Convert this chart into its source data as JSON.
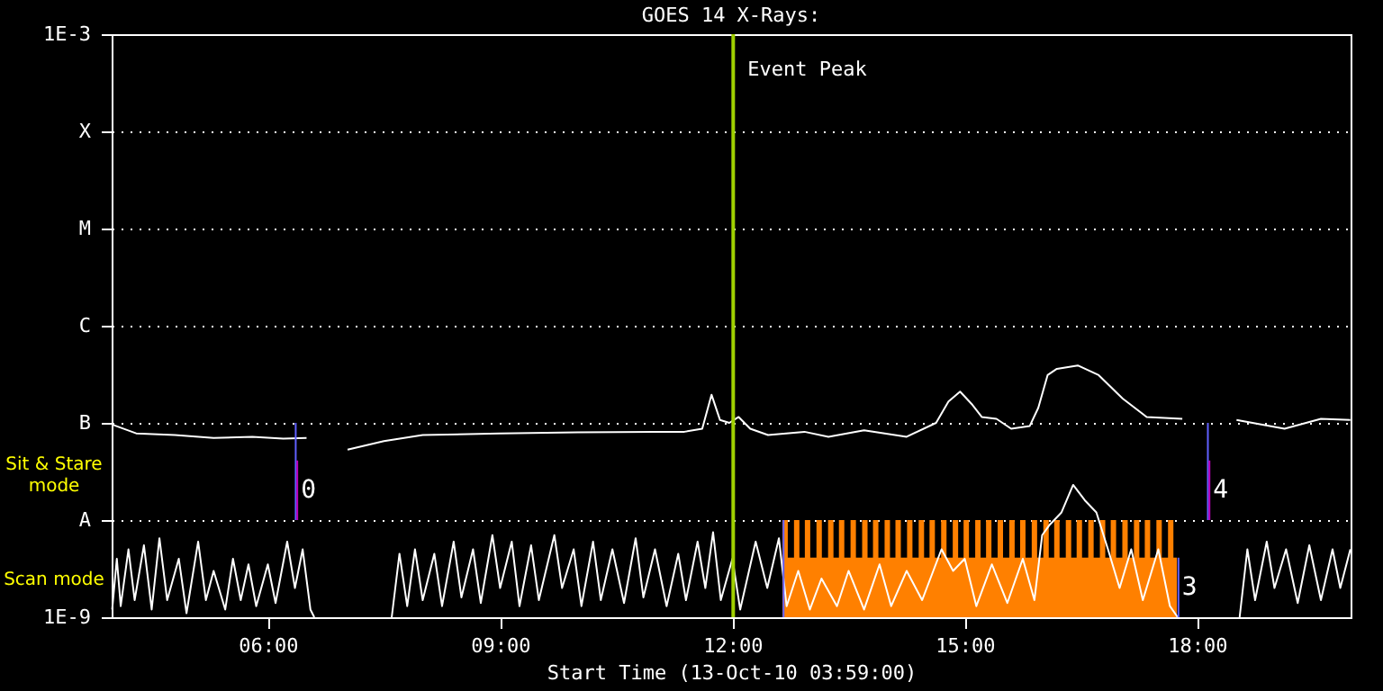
{
  "chart_data": {
    "type": "line",
    "title": "GOES 14 X-Rays:",
    "xlabel": "Start Time (13-Oct-10 03:59:00)",
    "xlim": [
      3.983,
      19.983
    ],
    "xticks": [
      {
        "value": 6,
        "label": "06:00"
      },
      {
        "value": 9,
        "label": "09:00"
      },
      {
        "value": 12,
        "label": "12:00"
      },
      {
        "value": 15,
        "label": "15:00"
      },
      {
        "value": 18,
        "label": "18:00"
      }
    ],
    "ylim": [
      1e-09,
      0.001
    ],
    "log": "y",
    "yticks": [
      {
        "value": 1e-09,
        "label": "1E-9"
      },
      {
        "value": 1e-08,
        "label": "A"
      },
      {
        "value": 1e-07,
        "label": "B"
      },
      {
        "value": 1e-06,
        "label": "C"
      },
      {
        "value": 1e-05,
        "label": "M"
      },
      {
        "value": 0.0001,
        "label": "X"
      },
      {
        "value": 0.001,
        "label": "1E-3"
      }
    ],
    "grid": "y",
    "series": [
      {
        "type": "area",
        "color": "#ff8000",
        "x": [
          12.66,
          17.74
        ],
        "values": [
          4.1e-09,
          4.1e-09
        ]
      },
      {
        "type": "bar",
        "color": "#ff8000",
        "x": [
          12.68,
          12.83,
          12.97,
          13.12,
          13.27,
          13.41,
          13.56,
          13.71,
          13.85,
          14.0,
          14.14,
          14.29,
          14.44,
          14.58,
          14.73,
          14.88,
          15.02,
          15.17,
          15.31,
          15.46,
          15.61,
          15.75,
          15.9,
          16.05,
          16.19,
          16.34,
          16.48,
          16.63,
          16.78,
          16.92,
          17.07,
          17.22,
          17.36,
          17.51,
          17.66
        ],
        "values": [
          1e-08,
          1e-08,
          1e-08,
          1e-08,
          1e-08,
          1e-08,
          1e-08,
          1e-08,
          1e-08,
          1e-08,
          1e-08,
          1e-08,
          1e-08,
          1e-08,
          1e-08,
          1e-08,
          1e-08,
          1e-08,
          1e-08,
          1e-08,
          1e-08,
          1e-08,
          1e-08,
          1e-08,
          1e-08,
          1e-08,
          1e-08,
          1e-08,
          1e-08,
          1e-08,
          1e-08,
          1e-08,
          1e-08,
          1e-08,
          1e-08
        ]
      },
      {
        "color": "#ffffff",
        "x": [
          3.99,
          4.05,
          4.1,
          4.2,
          4.28,
          4.4,
          4.5,
          4.6,
          4.7,
          4.85,
          4.95,
          5.1,
          5.2,
          5.3,
          5.45,
          5.55,
          5.65,
          5.75,
          5.85,
          6.0,
          6.1,
          6.25,
          6.35,
          6.45,
          6.55,
          6.6,
          7.0,
          7.6,
          7.7,
          7.8,
          7.9,
          8.0,
          8.15,
          8.25,
          8.4,
          8.5,
          8.65,
          8.75,
          8.9,
          9.0,
          9.15,
          9.25,
          9.4,
          9.5,
          9.7,
          9.8,
          9.95,
          10.05,
          10.2,
          10.3,
          10.45,
          10.6,
          10.75,
          10.85,
          11.0,
          11.15,
          11.3,
          11.4,
          11.55,
          11.65,
          11.75,
          11.85,
          12.0,
          12.1,
          12.3,
          12.45,
          12.6,
          12.7,
          12.85,
          13.0,
          13.15,
          13.35,
          13.5,
          13.7,
          13.9,
          14.05,
          14.25,
          14.45,
          14.7,
          14.85,
          15.0,
          15.15,
          15.35,
          15.55,
          15.75,
          15.9,
          16.0,
          16.1,
          16.25,
          16.4,
          16.55,
          16.7,
          16.85,
          17.0,
          17.15,
          17.3,
          17.5,
          17.65,
          17.75,
          18.1,
          18.55,
          18.65,
          18.75,
          18.9,
          19.0,
          19.15,
          19.3,
          19.45,
          19.6,
          19.75,
          19.85,
          19.98
        ],
        "values": [
          1.2e-09,
          4e-09,
          1.3e-09,
          5e-09,
          1.5e-09,
          5.5e-09,
          1.2e-09,
          6.5e-09,
          1.5e-09,
          4e-09,
          1.1e-09,
          6e-09,
          1.5e-09,
          3e-09,
          1.2e-09,
          4e-09,
          1.5e-09,
          3.5e-09,
          1.3e-09,
          3.5e-09,
          1.4e-09,
          6e-09,
          2e-09,
          5e-09,
          1.2e-09,
          1e-09,
          null,
          1e-09,
          4.5e-09,
          1.3e-09,
          5e-09,
          1.5e-09,
          4.5e-09,
          1.3e-09,
          6e-09,
          1.6e-09,
          5e-09,
          1.4e-09,
          7e-09,
          2e-09,
          6e-09,
          1.3e-09,
          5.5e-09,
          1.5e-09,
          7e-09,
          2e-09,
          5e-09,
          1.3e-09,
          6e-09,
          1.5e-09,
          5e-09,
          1.4e-09,
          6.5e-09,
          1.6e-09,
          5e-09,
          1.3e-09,
          4.5e-09,
          1.5e-09,
          6e-09,
          2e-09,
          7.5e-09,
          1.5e-09,
          4e-09,
          1.2e-09,
          6e-09,
          2e-09,
          6.5e-09,
          1.3e-09,
          3e-09,
          1.2e-09,
          2.5e-09,
          1.3e-09,
          3e-09,
          1.2e-09,
          3.5e-09,
          1.3e-09,
          3e-09,
          1.5e-09,
          5e-09,
          3e-09,
          4e-09,
          1.3e-09,
          3.5e-09,
          1.4e-09,
          4e-09,
          1.5e-09,
          7e-09,
          9e-09,
          1.2e-08,
          2.3e-08,
          1.6e-08,
          1.2e-08,
          5e-09,
          2e-09,
          5e-09,
          1.5e-09,
          5e-09,
          1.3e-09,
          1e-09,
          null,
          1e-09,
          5e-09,
          1.5e-09,
          6e-09,
          2e-09,
          5e-09,
          1.4e-09,
          5.5e-09,
          1.5e-09,
          5e-09,
          2e-09,
          5e-09
        ]
      },
      {
        "color": "#ffffff",
        "x": [
          3.99,
          4.3,
          4.8,
          5.3,
          5.8,
          6.2,
          6.5,
          6.8,
          7.03,
          7.5,
          8.0,
          9.0,
          10.0,
          11.0,
          11.38,
          11.61,
          11.73,
          11.84,
          11.96,
          12.08,
          12.23,
          12.46,
          12.93,
          13.24,
          13.7,
          14.25,
          14.63,
          14.79,
          14.94,
          15.1,
          15.22,
          15.41,
          15.6,
          15.84,
          15.95,
          16.07,
          16.19,
          16.46,
          16.73,
          17.04,
          17.35,
          17.81,
          18.2,
          18.51,
          19.13,
          19.6,
          19.98
        ],
        "values": [
          9.6e-08,
          7.8e-08,
          7.5e-08,
          7e-08,
          7.2e-08,
          6.9e-08,
          7e-08,
          null,
          5.3e-08,
          6.5e-08,
          7.5e-08,
          7.8e-08,
          8e-08,
          8.1e-08,
          8.1e-08,
          8.7e-08,
          1.95e-07,
          1.07e-07,
          1e-07,
          1.15e-07,
          8.7e-08,
          7.5e-08,
          8.1e-08,
          7.2e-08,
          8.4e-08,
          7.2e-08,
          1e-07,
          1.66e-07,
          2.1e-07,
          1.53e-07,
          1.15e-07,
          1.1e-07,
          8.7e-08,
          9.3e-08,
          1.43e-07,
          3.1e-07,
          3.6e-07,
          3.9e-07,
          3.1e-07,
          1.78e-07,
          1.15e-07,
          1.1e-07,
          null,
          1.07e-07,
          8.7e-08,
          1.1e-07,
          1.07e-07
        ]
      },
      {
        "color": "#6060ff",
        "x": [
          6.36,
          6.36
        ],
        "values": [
          1e-07,
          1e-08
        ]
      },
      {
        "name": "0",
        "color": "#c000c0",
        "x": [
          6.38,
          6.38
        ],
        "values": [
          4.1e-08,
          1e-08
        ]
      },
      {
        "color": "#6060ff",
        "x": [
          18.14,
          18.14
        ],
        "values": [
          1e-07,
          1e-08
        ]
      },
      {
        "name": "4",
        "color": "#c000c0",
        "x": [
          18.16,
          18.16
        ],
        "values": [
          4.1e-08,
          1e-08
        ]
      },
      {
        "color": "#6060ff",
        "x": [
          12.66,
          12.66
        ],
        "values": [
          1e-09,
          1e-08
        ]
      },
      {
        "name": "3",
        "color": "#6060ff",
        "x": [
          17.76,
          17.76
        ],
        "values": [
          1e-09,
          4.1e-09
        ]
      }
    ],
    "ref_lines": [
      {
        "axis": "x",
        "value": 12.01,
        "label": "Event Peak",
        "color": "#a0d000"
      }
    ],
    "annotations": [
      "Sit & Stare mode",
      "Scan mode"
    ]
  }
}
